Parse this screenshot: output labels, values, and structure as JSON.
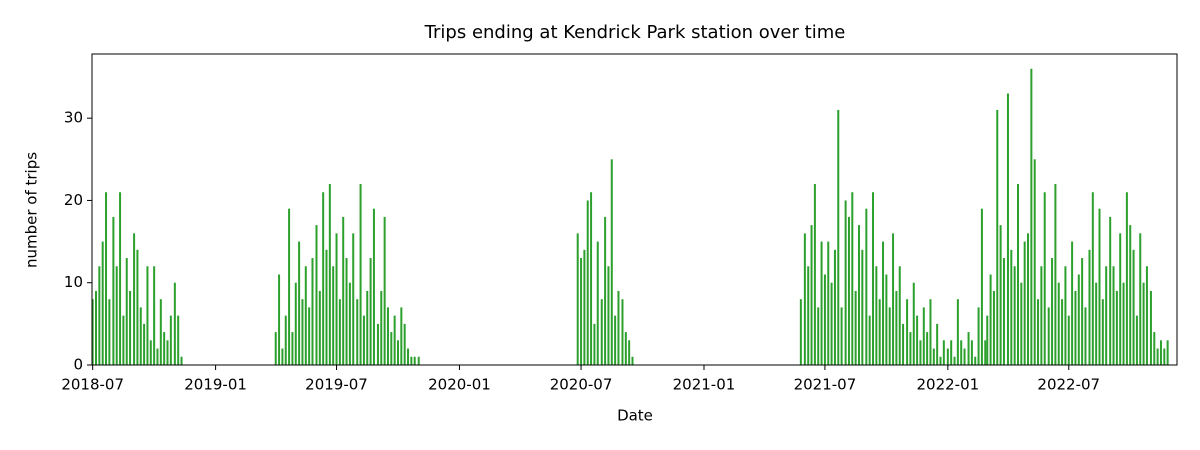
{
  "chart_data": {
    "type": "bar",
    "title": "Trips ending at Kendrick Park station over time",
    "xlabel": "Date",
    "ylabel": "number of trips",
    "color": "#2ca02c",
    "xlim": [
      "2018-06-30",
      "2022-12-10"
    ],
    "ylim": [
      0,
      37.8
    ],
    "yticks": [
      0,
      10,
      20,
      30
    ],
    "xticks": [
      {
        "value": "2018-07-01",
        "label": "2018-07"
      },
      {
        "value": "2019-01-01",
        "label": "2019-01"
      },
      {
        "value": "2019-07-01",
        "label": "2019-07"
      },
      {
        "value": "2020-01-01",
        "label": "2020-01"
      },
      {
        "value": "2020-07-01",
        "label": "2020-07"
      },
      {
        "value": "2021-01-01",
        "label": "2021-01"
      },
      {
        "value": "2021-07-01",
        "label": "2021-07"
      },
      {
        "value": "2022-01-01",
        "label": "2022-01"
      },
      {
        "value": "2022-07-01",
        "label": "2022-07"
      }
    ],
    "x": [
      "2018-07-01",
      "2018-07-06",
      "2018-07-11",
      "2018-07-16",
      "2018-07-21",
      "2018-07-26",
      "2018-08-01",
      "2018-08-06",
      "2018-08-11",
      "2018-08-16",
      "2018-08-21",
      "2018-08-26",
      "2018-09-01",
      "2018-09-06",
      "2018-09-11",
      "2018-09-16",
      "2018-09-21",
      "2018-09-26",
      "2018-10-01",
      "2018-10-06",
      "2018-10-11",
      "2018-10-16",
      "2018-10-21",
      "2018-10-26",
      "2018-11-01",
      "2018-11-06",
      "2018-11-11",
      "2019-04-01",
      "2019-04-06",
      "2019-04-11",
      "2019-04-16",
      "2019-04-21",
      "2019-04-26",
      "2019-05-01",
      "2019-05-06",
      "2019-05-11",
      "2019-05-16",
      "2019-05-21",
      "2019-05-26",
      "2019-06-01",
      "2019-06-06",
      "2019-06-11",
      "2019-06-16",
      "2019-06-21",
      "2019-06-26",
      "2019-07-01",
      "2019-07-06",
      "2019-07-11",
      "2019-07-16",
      "2019-07-21",
      "2019-07-26",
      "2019-08-01",
      "2019-08-06",
      "2019-08-11",
      "2019-08-16",
      "2019-08-21",
      "2019-08-26",
      "2019-09-01",
      "2019-09-06",
      "2019-09-11",
      "2019-09-16",
      "2019-09-21",
      "2019-09-26",
      "2019-10-01",
      "2019-10-06",
      "2019-10-11",
      "2019-10-16",
      "2019-10-21",
      "2019-10-26",
      "2019-11-01",
      "2020-06-26",
      "2020-07-01",
      "2020-07-06",
      "2020-07-11",
      "2020-07-16",
      "2020-07-21",
      "2020-07-26",
      "2020-08-01",
      "2020-08-06",
      "2020-08-11",
      "2020-08-16",
      "2020-08-21",
      "2020-08-26",
      "2020-09-01",
      "2020-09-06",
      "2020-09-11",
      "2020-09-16",
      "2021-05-26",
      "2021-06-01",
      "2021-06-06",
      "2021-06-11",
      "2021-06-16",
      "2021-06-21",
      "2021-06-26",
      "2021-07-01",
      "2021-07-06",
      "2021-07-11",
      "2021-07-16",
      "2021-07-21",
      "2021-07-26",
      "2021-08-01",
      "2021-08-06",
      "2021-08-11",
      "2021-08-16",
      "2021-08-21",
      "2021-08-26",
      "2021-09-01",
      "2021-09-06",
      "2021-09-11",
      "2021-09-16",
      "2021-09-21",
      "2021-09-26",
      "2021-10-01",
      "2021-10-06",
      "2021-10-11",
      "2021-10-16",
      "2021-10-21",
      "2021-10-26",
      "2021-11-01",
      "2021-11-06",
      "2021-11-11",
      "2021-11-16",
      "2021-11-21",
      "2021-11-26",
      "2021-12-01",
      "2021-12-06",
      "2021-12-11",
      "2021-12-16",
      "2021-12-21",
      "2021-12-26",
      "2022-01-01",
      "2022-01-06",
      "2022-01-11",
      "2022-01-16",
      "2022-01-21",
      "2022-01-26",
      "2022-02-01",
      "2022-02-06",
      "2022-02-11",
      "2022-02-16",
      "2022-02-21",
      "2022-02-26",
      "2022-03-01",
      "2022-03-06",
      "2022-03-11",
      "2022-03-16",
      "2022-03-21",
      "2022-03-26",
      "2022-04-01",
      "2022-04-06",
      "2022-04-11",
      "2022-04-16",
      "2022-04-21",
      "2022-04-26",
      "2022-05-01",
      "2022-05-06",
      "2022-05-11",
      "2022-05-16",
      "2022-05-21",
      "2022-05-26",
      "2022-06-01",
      "2022-06-06",
      "2022-06-11",
      "2022-06-16",
      "2022-06-21",
      "2022-06-26",
      "2022-07-01",
      "2022-07-06",
      "2022-07-11",
      "2022-07-16",
      "2022-07-21",
      "2022-07-26",
      "2022-08-01",
      "2022-08-06",
      "2022-08-11",
      "2022-08-16",
      "2022-08-21",
      "2022-08-26",
      "2022-09-01",
      "2022-09-06",
      "2022-09-11",
      "2022-09-16",
      "2022-09-21",
      "2022-09-26",
      "2022-10-01",
      "2022-10-06",
      "2022-10-11",
      "2022-10-16",
      "2022-10-21",
      "2022-10-26",
      "2022-11-01",
      "2022-11-06",
      "2022-11-11",
      "2022-11-16",
      "2022-11-21",
      "2022-11-26"
    ],
    "values": [
      8,
      9,
      12,
      15,
      21,
      8,
      18,
      12,
      21,
      6,
      13,
      9,
      16,
      14,
      7,
      5,
      12,
      3,
      12,
      2,
      8,
      4,
      3,
      6,
      10,
      6,
      1,
      4,
      11,
      2,
      6,
      19,
      4,
      10,
      15,
      8,
      12,
      7,
      13,
      17,
      9,
      21,
      14,
      22,
      12,
      16,
      8,
      18,
      13,
      10,
      16,
      8,
      22,
      6,
      9,
      13,
      19,
      5,
      9,
      18,
      7,
      4,
      6,
      3,
      7,
      5,
      2,
      1,
      1,
      1,
      16,
      13,
      14,
      20,
      21,
      5,
      15,
      8,
      18,
      12,
      25,
      6,
      9,
      8,
      4,
      3,
      1,
      8,
      16,
      12,
      17,
      22,
      7,
      15,
      11,
      15,
      10,
      14,
      31,
      7,
      20,
      18,
      21,
      9,
      17,
      14,
      19,
      6,
      21,
      12,
      8,
      15,
      11,
      7,
      16,
      9,
      12,
      5,
      8,
      4,
      10,
      6,
      3,
      7,
      4,
      8,
      2,
      5,
      1,
      3,
      2,
      3,
      1,
      8,
      3,
      2,
      4,
      3,
      1,
      7,
      19,
      3,
      6,
      11,
      9,
      31,
      17,
      13,
      33,
      14,
      12,
      22,
      10,
      15,
      16,
      36,
      25,
      8,
      12,
      21,
      7,
      13,
      22,
      10,
      8,
      12,
      6,
      15,
      9,
      11,
      13,
      7,
      14,
      21,
      10,
      19,
      8,
      12,
      18,
      12,
      9,
      16,
      10,
      21,
      17,
      14,
      6,
      16,
      10,
      12,
      9,
      4,
      2,
      3,
      2,
      3
    ]
  }
}
